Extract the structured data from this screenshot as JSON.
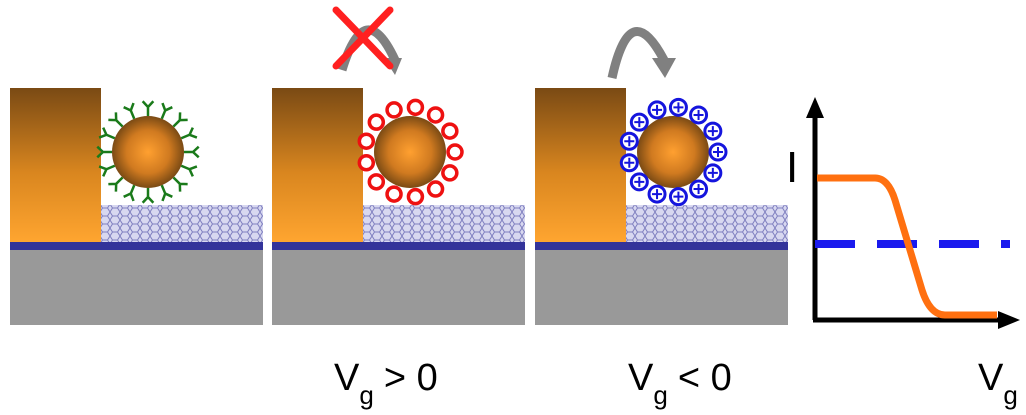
{
  "labels": [
    {
      "main": "V",
      "sub": "g",
      "rest": "> 0"
    },
    {
      "main": "V",
      "sub": "g",
      "rest": "< 0"
    }
  ],
  "graph": {
    "y_axis": "I",
    "x_axis": {
      "main": "V",
      "sub": "g"
    }
  }
}
